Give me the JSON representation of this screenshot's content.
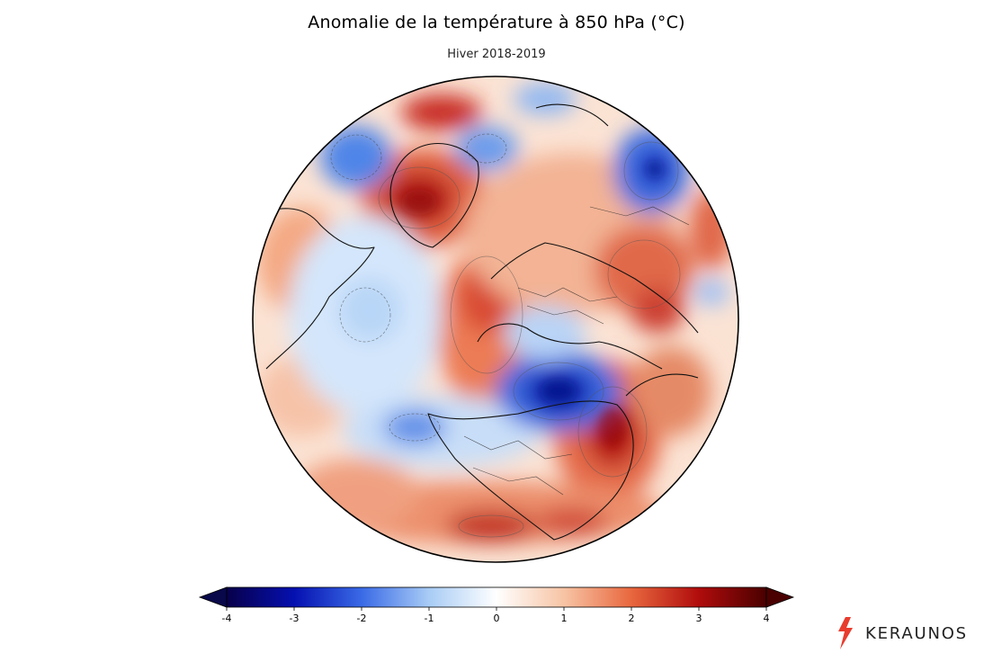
{
  "header": {
    "title": "Anomalie de la température à 850 hPa (°C)",
    "subtitle": "Hiver 2018-2019"
  },
  "colorbar": {
    "ticks": [
      "-4",
      "-3",
      "-2",
      "-1",
      "0",
      "1",
      "2",
      "3",
      "4"
    ],
    "min": -4,
    "max": 4,
    "stops": [
      "#08004a",
      "#0510b0",
      "#3a6ae6",
      "#a8ccf5",
      "#ffffff",
      "#f7c4a4",
      "#e8673e",
      "#b00c0c",
      "#4a0000"
    ],
    "extend_low_color": "#08084a",
    "extend_high_color": "#4a0000"
  },
  "brand": {
    "name": "KERAUNOS",
    "accent_color": "#e83c2e"
  },
  "map": {
    "projection": "orthographic",
    "ocean_neutral_color": "#fbe6da"
  }
}
